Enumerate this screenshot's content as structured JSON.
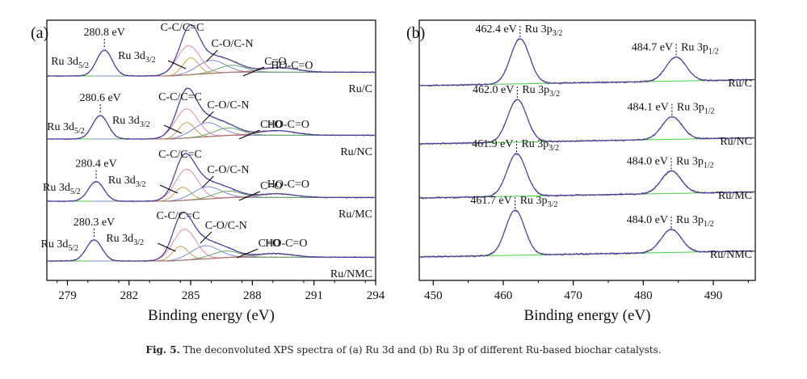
{
  "caption": {
    "label": "Fig. 5.",
    "text": "The deconvoluted XPS spectra of (a) Ru 3d and (b) Ru 3p of different Ru-based biochar catalysts."
  },
  "colors": {
    "raw": "#555555",
    "envelope": "#4b3fa0",
    "ru52": "#c0304a",
    "ru32": "#c9a050",
    "cc": "#d98ab0",
    "con": "#7c8cd0",
    "co": "#6aa86a",
    "hoco": "#b36a6a",
    "bg": "#44cc44",
    "baseline": "#7b7b2b"
  },
  "chart_data": [
    {
      "panel_label": "(a)",
      "type": "line",
      "xlabel": "Binding energy (eV)",
      "xlim": [
        278,
        294
      ],
      "xticks": [
        279,
        282,
        285,
        288,
        291,
        294
      ],
      "stacked": true,
      "series_order": [
        "Ru 3d5/2",
        "Ru 3d3/2",
        "C-C/C=C",
        "C-O/C-N",
        "C=O",
        "HO-C=O",
        "envelope",
        "background"
      ],
      "spectra": [
        {
          "sample": "Ru/C",
          "ru52_label": "280.8 eV",
          "peaks": [
            {
              "name": "Ru 3d5/2",
              "center": 280.8,
              "height": 0.55,
              "fwhm": 0.9
            },
            {
              "name": "Ru 3d3/2",
              "center": 285.0,
              "height": 0.36,
              "fwhm": 0.9
            },
            {
              "name": "C-C/C=C",
              "center": 284.9,
              "height": 0.62,
              "fwhm": 1.3
            },
            {
              "name": "C-O/C-N",
              "center": 286.0,
              "height": 0.28,
              "fwhm": 1.6
            },
            {
              "name": "C=O",
              "center": 287.0,
              "height": 0.15,
              "fwhm": 1.6
            },
            {
              "name": "HO-C=O",
              "center": 289.3,
              "height": 0.1,
              "fwhm": 2.0
            }
          ],
          "labels": {
            "ru52": "Ru 3d",
            "ru52_sub": "5/2",
            "ru32": "Ru 3d",
            "ru32_sub": "3/2",
            "cc": "C-C/C=C",
            "con": "C-O/C-N",
            "co": "C=O",
            "hoco": "HO-C=O"
          }
        },
        {
          "sample": "Ru/NC",
          "ru52_label": "280.6 eV",
          "peaks": [
            {
              "name": "Ru 3d5/2",
              "center": 280.6,
              "height": 0.5,
              "fwhm": 0.9
            },
            {
              "name": "Ru 3d3/2",
              "center": 284.8,
              "height": 0.33,
              "fwhm": 0.9
            },
            {
              "name": "C-C/C=C",
              "center": 284.8,
              "height": 0.62,
              "fwhm": 1.3
            },
            {
              "name": "C-O/C-N",
              "center": 285.8,
              "height": 0.3,
              "fwhm": 1.6
            },
            {
              "name": "C=O",
              "center": 286.8,
              "height": 0.16,
              "fwhm": 1.6
            },
            {
              "name": "HO-C=O",
              "center": 289.2,
              "height": 0.1,
              "fwhm": 2.0
            }
          ],
          "labels": {
            "ru52": "Ru 3d",
            "ru52_sub": "5/2",
            "ru32": "Ru 3d",
            "ru32_sub": "3/2",
            "cc": "C-C/C=C",
            "con": "C-O/C-N",
            "co": "C=O",
            "hoco": "HO-C=O"
          }
        },
        {
          "sample": "Ru/MC",
          "ru52_label": "280.4 eV",
          "peaks": [
            {
              "name": "Ru 3d5/2",
              "center": 280.4,
              "height": 0.42,
              "fwhm": 0.9
            },
            {
              "name": "Ru 3d3/2",
              "center": 284.6,
              "height": 0.28,
              "fwhm": 0.9
            },
            {
              "name": "C-C/C=C",
              "center": 284.8,
              "height": 0.66,
              "fwhm": 1.3
            },
            {
              "name": "C-O/C-N",
              "center": 285.8,
              "height": 0.26,
              "fwhm": 1.6
            },
            {
              "name": "C=O",
              "center": 286.8,
              "height": 0.14,
              "fwhm": 1.6
            },
            {
              "name": "HO-C=O",
              "center": 289.2,
              "height": 0.08,
              "fwhm": 2.0
            }
          ],
          "labels": {
            "ru52": "Ru 3d",
            "ru52_sub": "5/2",
            "ru32": "Ru 3d",
            "ru32_sub": "3/2",
            "cc": "C-C/C=C",
            "con": "C-O/C-N",
            "co": "C=O",
            "hoco": "HO-C=O"
          }
        },
        {
          "sample": "Ru/NMC",
          "ru52_label": "280.3 eV",
          "peaks": [
            {
              "name": "Ru 3d5/2",
              "center": 280.3,
              "height": 0.45,
              "fwhm": 0.9
            },
            {
              "name": "Ru 3d3/2",
              "center": 284.5,
              "height": 0.3,
              "fwhm": 0.9
            },
            {
              "name": "C-C/C=C",
              "center": 284.7,
              "height": 0.66,
              "fwhm": 1.3
            },
            {
              "name": "C-O/C-N",
              "center": 285.7,
              "height": 0.28,
              "fwhm": 1.6
            },
            {
              "name": "C=O",
              "center": 286.7,
              "height": 0.14,
              "fwhm": 1.6
            },
            {
              "name": "HO-C=O",
              "center": 289.1,
              "height": 0.08,
              "fwhm": 2.0
            }
          ],
          "labels": {
            "ru52": "Ru 3d",
            "ru52_sub": "5/2",
            "ru32": "Ru 3d",
            "ru32_sub": "3/2",
            "cc": "C-C/C=C",
            "con": "C-O/C-N",
            "co": "C=O",
            "hoco": "HO-C=O"
          }
        }
      ]
    },
    {
      "panel_label": "(b)",
      "type": "line",
      "xlabel": "Binding energy (eV)",
      "xlim": [
        448,
        496
      ],
      "xticks": [
        450,
        460,
        470,
        480,
        490
      ],
      "stacked": true,
      "spectra": [
        {
          "sample": "Ru/C",
          "p32_center": 462.4,
          "p32_label": "462.4 eV",
          "p12_center": 484.7,
          "p12_label": "484.7 eV",
          "p32_height": 0.9,
          "p12_height": 0.48,
          "labels": {
            "p32": "Ru 3p",
            "p32_sub": "3/2",
            "p12": "Ru 3p",
            "p12_sub": "1/2"
          }
        },
        {
          "sample": "Ru/NC",
          "p32_center": 462.0,
          "p32_label": "462.0 eV",
          "p12_center": 484.1,
          "p12_label": "484.1 eV",
          "p32_height": 0.85,
          "p12_height": 0.45,
          "labels": {
            "p32": "Ru 3p",
            "p32_sub": "3/2",
            "p12": "Ru 3p",
            "p12_sub": "1/2"
          }
        },
        {
          "sample": "Ru/MC",
          "p32_center": 461.9,
          "p32_label": "461.9 eV",
          "p12_center": 484.0,
          "p12_label": "484.0 eV",
          "p32_height": 0.85,
          "p12_height": 0.45,
          "labels": {
            "p32": "Ru 3p",
            "p32_sub": "3/2",
            "p12": "Ru 3p",
            "p12_sub": "1/2"
          }
        },
        {
          "sample": "Ru/NMC",
          "p32_center": 461.7,
          "p32_label": "461.7 eV",
          "p12_center": 484.0,
          "p12_label": "484.0 eV",
          "p32_height": 0.9,
          "p12_height": 0.46,
          "labels": {
            "p32": "Ru 3p",
            "p32_sub": "3/2",
            "p12": "Ru 3p",
            "p12_sub": "1/2"
          }
        }
      ]
    }
  ]
}
